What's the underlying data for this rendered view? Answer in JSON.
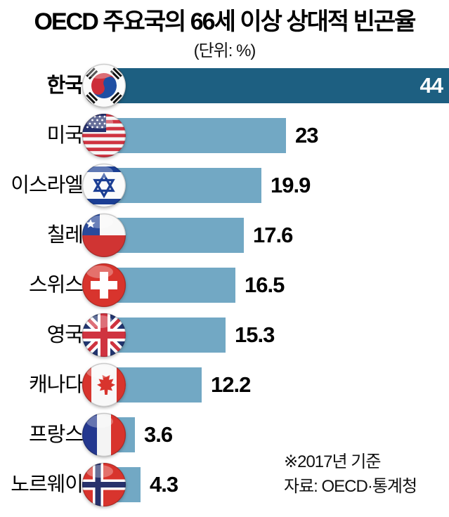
{
  "title": "OECD 주요국의 66세 이상 상대적 빈곤율",
  "unit_label": "(단위: %)",
  "footnote": "※2017년 기준",
  "source": "자료: OECD·통계청",
  "chart_data": {
    "type": "bar",
    "orientation": "horizontal",
    "title": "OECD 주요국의 66세 이상 상대적 빈곤율",
    "unit": "%",
    "categories": [
      "한국",
      "미국",
      "이스라엘",
      "칠레",
      "스위스",
      "영국",
      "캐나다",
      "프랑스",
      "노르웨이"
    ],
    "values": [
      44,
      23,
      19.9,
      17.6,
      16.5,
      15.3,
      12.2,
      3.6,
      4.3
    ],
    "value_labels": [
      "44",
      "23",
      "19.9",
      "17.6",
      "16.5",
      "15.3",
      "12.2",
      "3.6",
      "4.3"
    ],
    "flag_icons": [
      "south-korea-flag-icon",
      "usa-flag-icon",
      "israel-flag-icon",
      "chile-flag-icon",
      "switzerland-flag-icon",
      "uk-flag-icon",
      "canada-flag-icon",
      "france-flag-icon",
      "norway-flag-icon"
    ],
    "highlight_index": 0,
    "xlim": [
      0,
      44
    ],
    "legend": "none",
    "grid": false,
    "colors": {
      "highlight_bar": "#1d5f81",
      "bar": "#72a8c4",
      "highlight_value_text": "#ffffff",
      "value_text": "#000000"
    },
    "annotations": [
      "※2017년 기준",
      "자료: OECD·통계청"
    ]
  }
}
